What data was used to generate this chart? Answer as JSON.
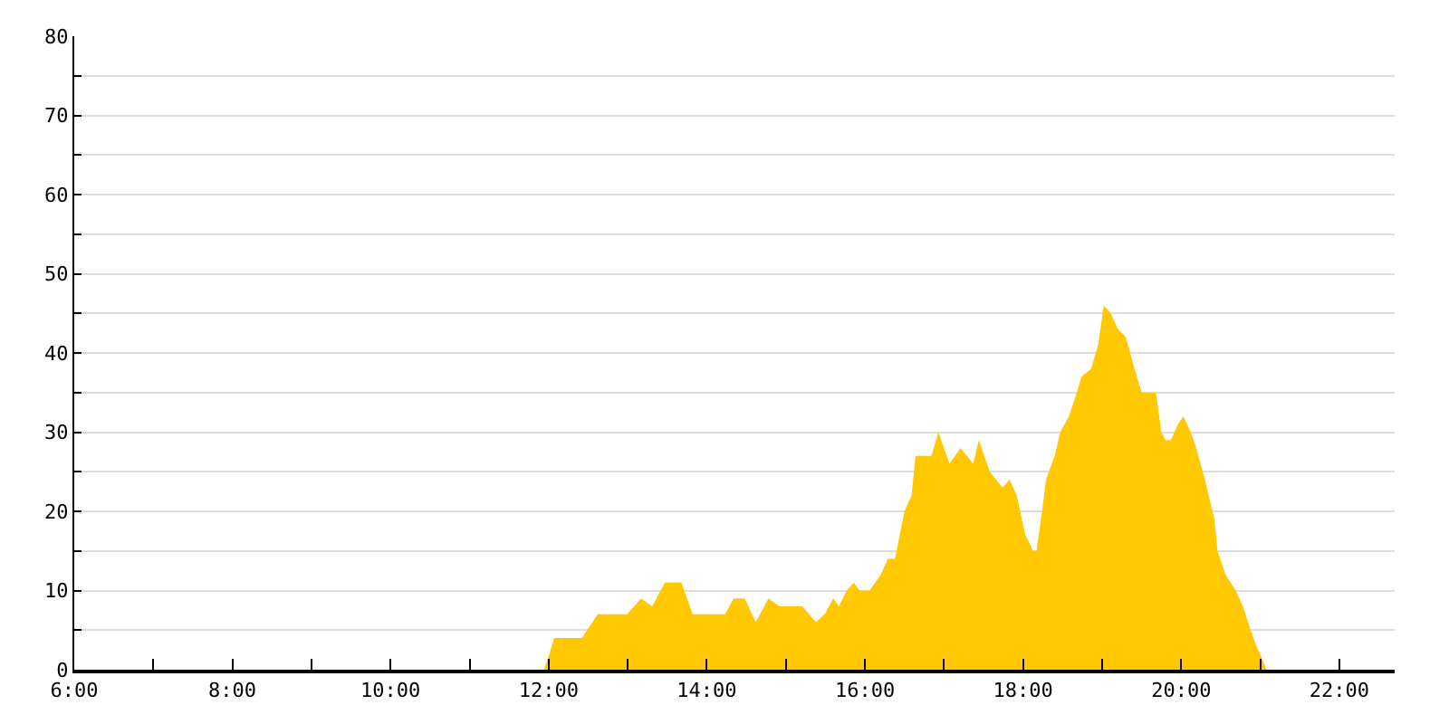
{
  "chart_data": {
    "type": "area",
    "xlim": [
      6,
      22.7
    ],
    "ylim": [
      0,
      80
    ],
    "grid": "y",
    "xticks": [
      {
        "value": 6,
        "label": "6:00"
      },
      {
        "value": 7,
        "label": null
      },
      {
        "value": 8,
        "label": "8:00"
      },
      {
        "value": 9,
        "label": null
      },
      {
        "value": 10,
        "label": "10:00"
      },
      {
        "value": 11,
        "label": null
      },
      {
        "value": 12,
        "label": "12:00"
      },
      {
        "value": 13,
        "label": null
      },
      {
        "value": 14,
        "label": "14:00"
      },
      {
        "value": 15,
        "label": null
      },
      {
        "value": 16,
        "label": "16:00"
      },
      {
        "value": 17,
        "label": null
      },
      {
        "value": 18,
        "label": "18:00"
      },
      {
        "value": 19,
        "label": null
      },
      {
        "value": 20,
        "label": "20:00"
      },
      {
        "value": 21,
        "label": null
      },
      {
        "value": 22,
        "label": "22:00"
      }
    ],
    "yticks": [
      0,
      {
        "value": 5,
        "label": null
      },
      10,
      {
        "value": 15,
        "label": null
      },
      20,
      {
        "value": 25,
        "label": null
      },
      30,
      {
        "value": 35,
        "label": null
      },
      40,
      {
        "value": 45,
        "label": null
      },
      50,
      {
        "value": 55,
        "label": null
      },
      60,
      {
        "value": 65,
        "label": null
      },
      70,
      {
        "value": 75,
        "label": null
      },
      80
    ],
    "series": [
      {
        "color": "#ffc800",
        "x": [
          11.94,
          12.01,
          12.07,
          12.42,
          12.62,
          12.99,
          13.17,
          13.31,
          13.47,
          13.68,
          13.82,
          14.23,
          14.34,
          14.48,
          14.62,
          14.78,
          14.92,
          15.21,
          15.38,
          15.49,
          15.6,
          15.67,
          15.77,
          15.86,
          15.93,
          16.06,
          16.2,
          16.29,
          16.38,
          16.5,
          16.59,
          16.64,
          16.84,
          16.93,
          17.07,
          17.21,
          17.37,
          17.44,
          17.58,
          17.74,
          17.83,
          17.92,
          18.03,
          18.13,
          18.17,
          18.24,
          18.29,
          18.4,
          18.47,
          18.58,
          18.68,
          18.74,
          18.86,
          18.95,
          19.02,
          19.11,
          19.2,
          19.3,
          19.41,
          19.5,
          19.59,
          19.68,
          19.75,
          19.8,
          19.87,
          19.96,
          20.03,
          20.12,
          20.19,
          20.3,
          20.42,
          20.46,
          20.56,
          20.69,
          20.78,
          20.88,
          20.95,
          21.04,
          21.08
        ],
        "values": [
          0,
          2,
          4,
          4,
          7,
          7,
          9,
          8,
          11,
          11,
          7,
          7,
          9,
          9,
          6,
          9,
          8,
          8,
          6,
          7,
          9,
          8,
          10,
          11,
          10,
          10,
          12,
          14,
          14,
          20,
          22,
          27,
          27,
          30,
          26,
          28,
          26,
          29,
          25,
          23,
          24,
          22,
          17,
          15,
          15,
          20,
          24,
          27,
          30,
          32,
          35,
          37,
          38,
          41,
          46,
          45,
          43,
          42,
          38,
          35,
          35,
          35,
          30,
          29,
          29,
          31,
          32,
          30,
          28,
          24,
          19,
          15,
          12,
          10,
          8,
          5,
          3,
          1,
          0
        ]
      }
    ]
  }
}
